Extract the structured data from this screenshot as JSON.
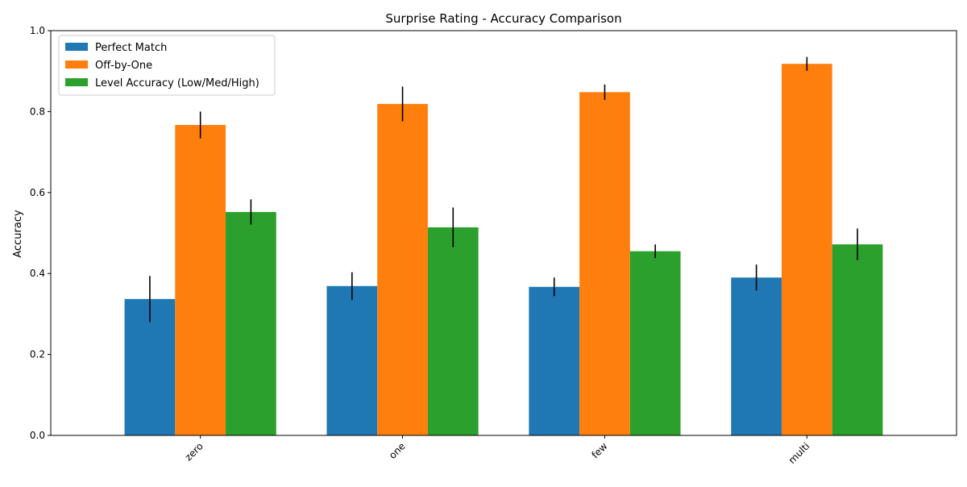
{
  "chart_data": {
    "type": "bar",
    "title": "Surprise Rating - Accuracy Comparison",
    "xlabel": "",
    "ylabel": "Accuracy",
    "ylim": [
      0,
      1.0
    ],
    "yticks": [
      0.0,
      0.2,
      0.4,
      0.6,
      0.8,
      1.0
    ],
    "ytick_labels": [
      "0.0",
      "0.2",
      "0.4",
      "0.6",
      "0.8",
      "1.0"
    ],
    "categories": [
      "zero",
      "one",
      "few",
      "multi"
    ],
    "series": [
      {
        "name": "Perfect Match",
        "color": "#1f77b4",
        "values": [
          0.337,
          0.369,
          0.367,
          0.39
        ],
        "errors": [
          0.057,
          0.034,
          0.023,
          0.032
        ]
      },
      {
        "name": "Off-by-One",
        "color": "#ff7f0e",
        "values": [
          0.767,
          0.819,
          0.848,
          0.918
        ],
        "errors": [
          0.033,
          0.043,
          0.019,
          0.017
        ]
      },
      {
        "name": "Level Accuracy (Low/Med/High)",
        "color": "#2ca02c",
        "values": [
          0.552,
          0.514,
          0.455,
          0.472
        ],
        "errors": [
          0.031,
          0.049,
          0.017,
          0.039
        ]
      }
    ],
    "legend_position": "top-left",
    "grid": false
  }
}
